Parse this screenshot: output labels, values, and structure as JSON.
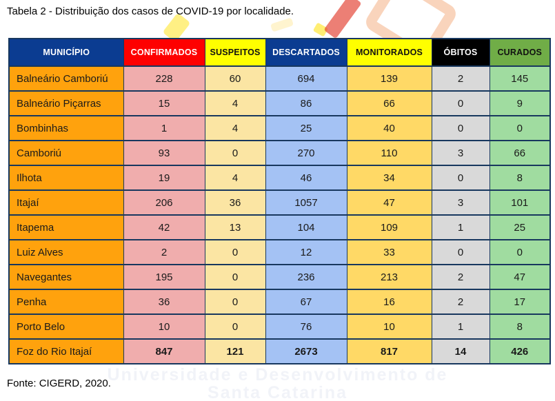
{
  "title": "Tabela 2 - Distribuição dos casos de COVID-19 por localidade.",
  "source": "Fonte: CIGERD, 2020.",
  "watermark": {
    "line1": "Universidade e Desenvolvimento de",
    "line2": "Santa Catarina"
  },
  "colors": {
    "border_navy": "#17375E",
    "header_blue": "#0B3C91",
    "header_red": "#FE0000",
    "header_yellow": "#FFFF00",
    "header_black": "#000000",
    "header_green": "#70AD47",
    "municipality_orange": "#FFA20D"
  },
  "table": {
    "columns": [
      {
        "label": "MUNICÍPIO",
        "header_bg": "#0B3C91",
        "header_color": "#FFFFFF",
        "cell_bg": "#FFA20D"
      },
      {
        "label": "CONFIRMADOS",
        "header_bg": "#FE0000",
        "header_color": "#FFFFFF",
        "cell_bg": "#F0ADAD"
      },
      {
        "label": "SUSPEITOS",
        "header_bg": "#FFFF00",
        "header_color": "#111111",
        "cell_bg": "#FBE5A3"
      },
      {
        "label": "DESCARTADOS",
        "header_bg": "#0B3C91",
        "header_color": "#FFFFFF",
        "cell_bg": "#A4C2F4"
      },
      {
        "label": "MONITORADOS",
        "header_bg": "#FFFF00",
        "header_color": "#111111",
        "cell_bg": "#FFD966"
      },
      {
        "label": "ÓBITOS",
        "header_bg": "#000000",
        "header_color": "#FFFFFF",
        "cell_bg": "#D9D9D9"
      },
      {
        "label": "CURADOS",
        "header_bg": "#70AD47",
        "header_color": "#111111",
        "cell_bg": "#A0DCA0"
      }
    ],
    "rows": [
      {
        "name": "Balneário Camboriú",
        "values": [
          228,
          60,
          694,
          139,
          2,
          145
        ],
        "total": false
      },
      {
        "name": "Balneário Piçarras",
        "values": [
          15,
          4,
          86,
          66,
          0,
          9
        ],
        "total": false
      },
      {
        "name": "Bombinhas",
        "values": [
          1,
          4,
          25,
          40,
          0,
          0
        ],
        "total": false
      },
      {
        "name": "Camboriú",
        "values": [
          93,
          0,
          270,
          110,
          3,
          66
        ],
        "total": false
      },
      {
        "name": "Ilhota",
        "values": [
          19,
          4,
          46,
          34,
          0,
          8
        ],
        "total": false
      },
      {
        "name": "Itajaí",
        "values": [
          206,
          36,
          1057,
          47,
          3,
          101
        ],
        "total": false
      },
      {
        "name": "Itapema",
        "values": [
          42,
          13,
          104,
          109,
          1,
          25
        ],
        "total": false
      },
      {
        "name": "Luiz Alves",
        "values": [
          2,
          0,
          12,
          33,
          0,
          0
        ],
        "total": false
      },
      {
        "name": "Navegantes",
        "values": [
          195,
          0,
          236,
          213,
          2,
          47
        ],
        "total": false
      },
      {
        "name": "Penha",
        "values": [
          36,
          0,
          67,
          16,
          2,
          17
        ],
        "total": false
      },
      {
        "name": "Porto Belo",
        "values": [
          10,
          0,
          76,
          10,
          1,
          8
        ],
        "total": false
      },
      {
        "name": "Foz do Rio Itajaí",
        "values": [
          847,
          121,
          2673,
          817,
          14,
          426
        ],
        "total": true
      }
    ]
  }
}
